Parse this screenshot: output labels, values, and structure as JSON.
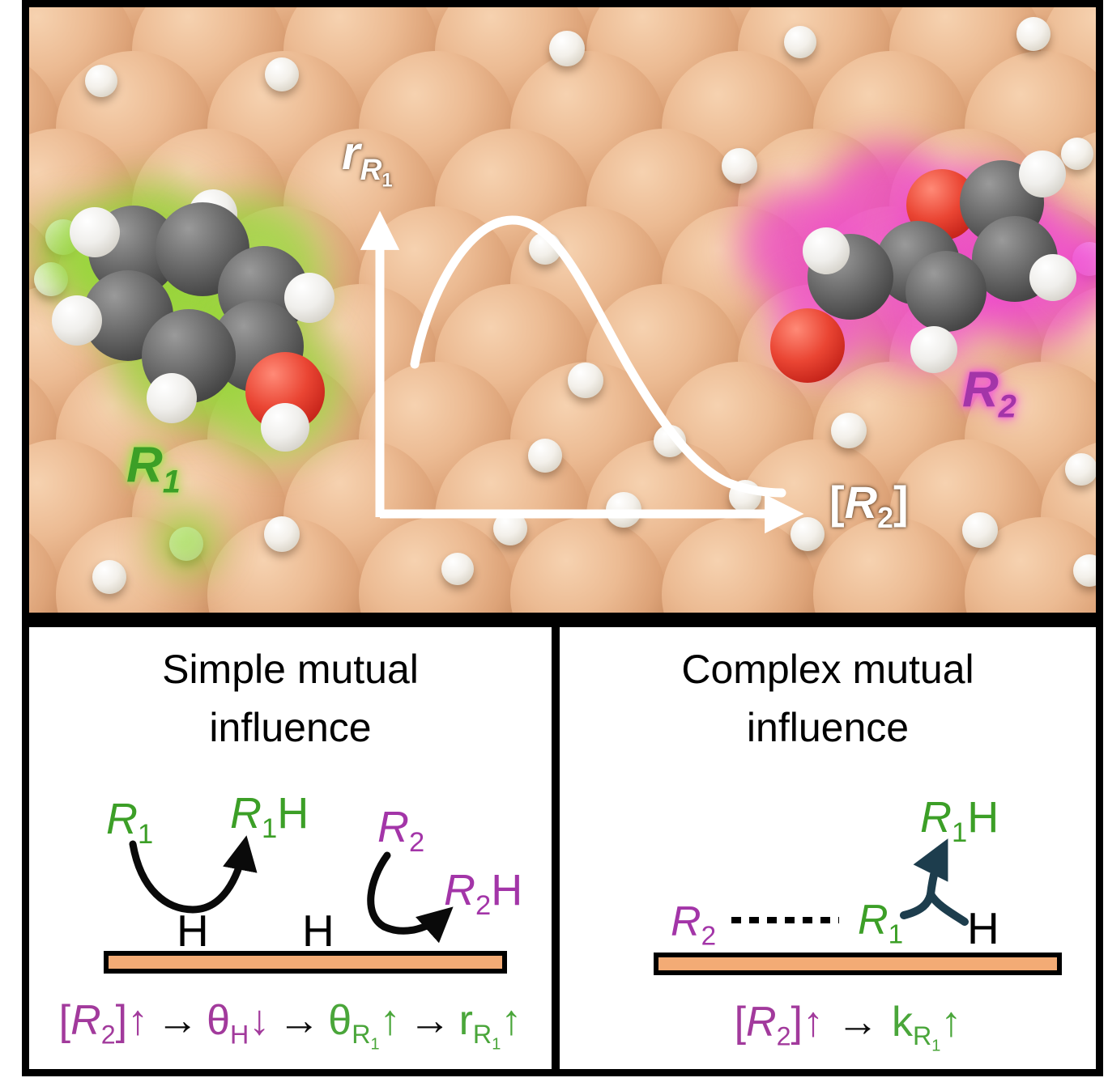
{
  "colors": {
    "r1_green": "#3c9f27",
    "r1_glow": "#a5e455",
    "r2_purple": "#a335a8",
    "r2_glow": "#f25cd8",
    "eq_purple": "#a23a9c",
    "eq_green": "#4aa63a",
    "arrow_black": "#0a0a0a",
    "teal_arrow": "#1d3d4d",
    "surface_bar_orange": "#f3ab75",
    "copper": "#e9b48d",
    "plot_white": "#ffffff"
  },
  "top_panel": {
    "y_label": {
      "base": "r",
      "sub": "R",
      "subsub": "1"
    },
    "x_label": {
      "pre": "[",
      "base": "R",
      "sub": "2",
      "post": "]"
    },
    "r1_label": {
      "base": "R",
      "sub": "1"
    },
    "r2_label": {
      "base": "R",
      "sub": "2"
    }
  },
  "left_panel": {
    "title_line1": "Simple mutual",
    "title_line2": "influence",
    "r1": {
      "base": "R",
      "sub": "1"
    },
    "r1h": {
      "base": "R",
      "sub": "1",
      "post": "H"
    },
    "r2": {
      "base": "R",
      "sub": "2"
    },
    "r2h": {
      "base": "R",
      "sub": "2",
      "post": "H"
    },
    "h_left": "H",
    "h_right": "H",
    "eq": {
      "lb": "[",
      "R": "R",
      "two": "2",
      "rb": "]",
      "up1": "↑",
      "arr1": "→",
      "theta1": "θ",
      "subH": "H",
      "down": "↓",
      "arr2": "→",
      "theta2": "θ",
      "subR1": "R",
      "subR1n": "1",
      "up2": "↑",
      "arr3": "→",
      "r": "r",
      "subR2": "R",
      "subR2n": "1",
      "up3": "↑"
    }
  },
  "right_panel": {
    "title_line1": "Complex mutual",
    "title_line2": "influence",
    "r1h": {
      "base": "R",
      "sub": "1",
      "post": "H"
    },
    "r2": {
      "base": "R",
      "sub": "2"
    },
    "r1": {
      "base": "R",
      "sub": "1"
    },
    "h": "H",
    "eq": {
      "lb": "[",
      "R": "R",
      "two": "2",
      "rb": "]",
      "up1": "↑",
      "arr": "→",
      "k": "k",
      "subR": "R",
      "subRn": "1",
      "up2": "↑"
    }
  }
}
